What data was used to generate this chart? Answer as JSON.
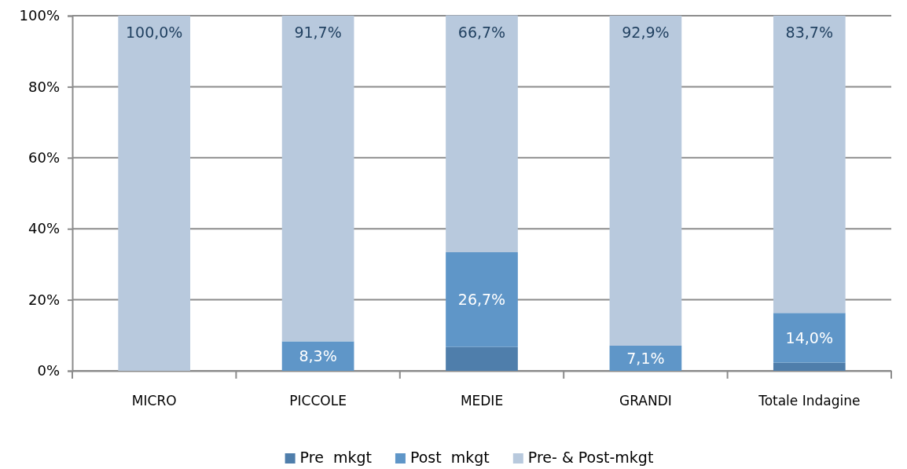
{
  "chart_data": {
    "type": "bar",
    "stacked": true,
    "categories": [
      "MICRO",
      "PICCOLE",
      "MEDIE",
      "GRANDI",
      "Totale Indagine"
    ],
    "series": [
      {
        "name": "Pre  mkgt",
        "color": "#4f7eab",
        "values": [
          0,
          0,
          6.7,
          0,
          2.3
        ],
        "value_labels": [
          null,
          null,
          null,
          null,
          null
        ]
      },
      {
        "name": "Post  mkgt",
        "color": "#5f96c8",
        "values": [
          0,
          8.3,
          26.7,
          7.1,
          14.0
        ],
        "value_labels": [
          null,
          "8,3%",
          "26,7%",
          "7,1%",
          "14,0%"
        ]
      },
      {
        "name": "Pre- & Post-mkgt",
        "color": "#b8c9dd",
        "values": [
          100,
          91.7,
          66.7,
          92.9,
          83.7
        ],
        "value_labels": [
          "100,0%",
          "91,7%",
          "66,7%",
          "92,9%",
          "83,7%"
        ]
      }
    ],
    "ylim": [
      0,
      100
    ],
    "yticks": [
      {
        "value": 0,
        "label": "0%"
      },
      {
        "value": 20,
        "label": "20%"
      },
      {
        "value": 40,
        "label": "40%"
      },
      {
        "value": 60,
        "label": "60%"
      },
      {
        "value": 80,
        "label": "80%"
      },
      {
        "value": 100,
        "label": "100%"
      }
    ],
    "grid": "y",
    "legend": "bottom"
  }
}
